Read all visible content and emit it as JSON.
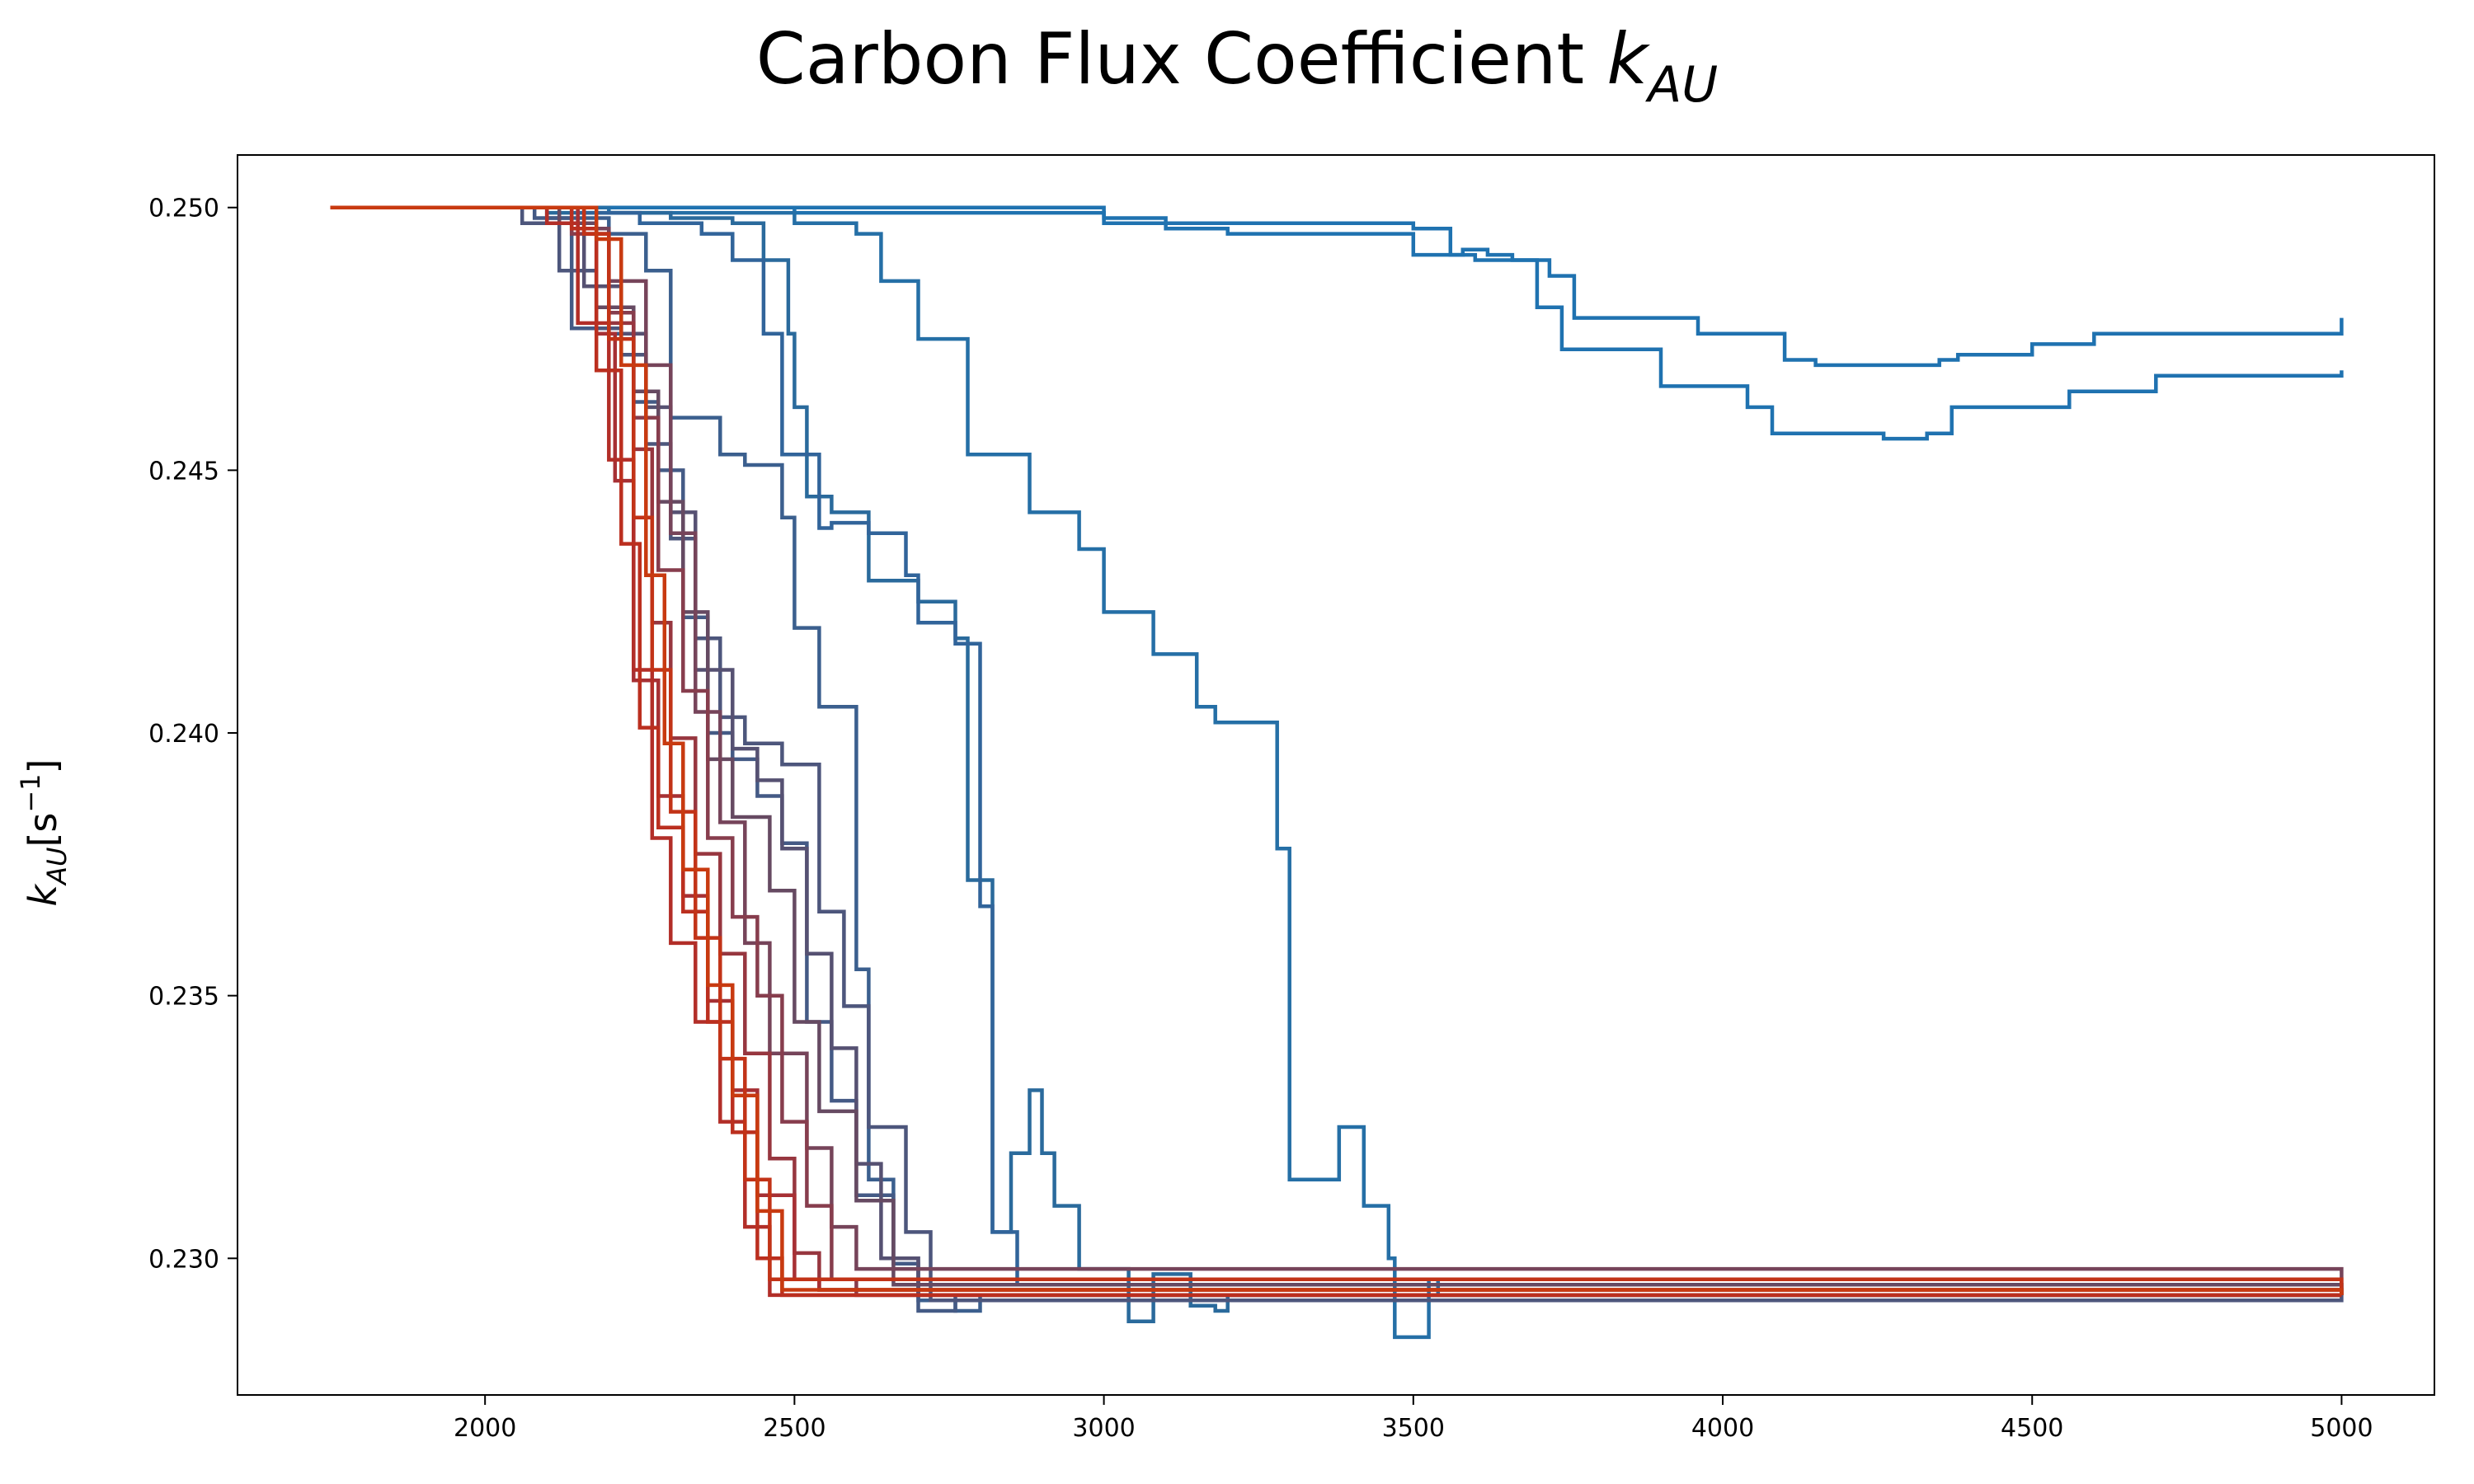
{
  "chart_data": {
    "type": "line",
    "title": {
      "text": "Carbon Flux Coefficient ",
      "symbol": "k",
      "subscript": "AU"
    },
    "xlabel": "",
    "ylabel": {
      "symbol": "k",
      "subscript": "AU",
      "unit_text": "[s",
      "unit_sup": "−1",
      "unit_close": "]"
    },
    "xlim": [
      1600,
      5150
    ],
    "ylim": [
      0.2274,
      0.251
    ],
    "xticks": [
      2000,
      2500,
      3000,
      3500,
      4000,
      4500,
      5000
    ],
    "yticks": [
      0.23,
      0.235,
      0.24,
      0.245,
      0.25
    ],
    "ytick_labels": [
      "0.230",
      "0.235",
      "0.240",
      "0.245",
      "0.250"
    ],
    "grid": false,
    "legend": "none",
    "series": [
      {
        "color": "#1f72b0",
        "x": [
          1750,
          2500,
          3000,
          3500,
          3560,
          3600,
          3720,
          3760,
          3800,
          3960,
          4000,
          4100,
          4150,
          4250,
          4350,
          4380,
          4500,
          4600,
          5000
        ],
        "y": [
          0.25,
          0.2499,
          0.2497,
          0.2496,
          0.2491,
          0.249,
          0.2487,
          0.2479,
          0.2479,
          0.2476,
          0.2476,
          0.2471,
          0.247,
          0.247,
          0.2471,
          0.2472,
          0.2474,
          0.2476,
          0.2479
        ]
      },
      {
        "color": "#1f72b0",
        "x": [
          1750,
          3000,
          3100,
          3200,
          3500,
          3580,
          3620,
          3660,
          3700,
          3740,
          3880,
          3900,
          4020,
          4040,
          4080,
          4260,
          4330,
          4370,
          4500,
          4560,
          4700,
          5000
        ],
        "y": [
          0.25,
          0.2498,
          0.2496,
          0.2495,
          0.2491,
          0.2492,
          0.2491,
          0.249,
          0.2481,
          0.2473,
          0.2473,
          0.2466,
          0.2466,
          0.2462,
          0.2457,
          0.2456,
          0.2457,
          0.2462,
          0.2462,
          0.2465,
          0.2468,
          0.2469
        ]
      },
      {
        "color": "#256fa6",
        "x": [
          1750,
          2200,
          2500,
          2600,
          2640,
          2700,
          2780,
          2880,
          2960,
          3000,
          3080,
          3150,
          3180,
          3280,
          3300,
          3300,
          3380,
          3420,
          3460,
          3470,
          3520,
          3525,
          3540,
          3600,
          5000
        ],
        "y": [
          0.25,
          0.2499,
          0.2497,
          0.2495,
          0.2486,
          0.2475,
          0.2453,
          0.2442,
          0.2435,
          0.2423,
          0.2415,
          0.2405,
          0.2402,
          0.2378,
          0.2377,
          0.2315,
          0.2325,
          0.231,
          0.23,
          0.2285,
          0.2285,
          0.2296,
          0.2293,
          0.2293,
          0.2293
        ]
      },
      {
        "color": "#2a6a9c",
        "x": [
          1750,
          2100,
          2300,
          2400,
          2450,
          2490,
          2500,
          2520,
          2560,
          2620,
          2700,
          2760,
          2780,
          2820,
          2840,
          2850,
          2880,
          2900,
          2920,
          2960,
          3040,
          3080,
          3140,
          3180,
          3200,
          3250,
          3300,
          5000
        ],
        "y": [
          0.25,
          0.2499,
          0.2498,
          0.2497,
          0.249,
          0.2476,
          0.2462,
          0.2445,
          0.2442,
          0.2429,
          0.2425,
          0.2418,
          0.2372,
          0.2305,
          0.2305,
          0.232,
          0.2332,
          0.232,
          0.231,
          0.2298,
          0.2288,
          0.2297,
          0.2291,
          0.229,
          0.2293,
          0.2293,
          0.2293,
          0.2293
        ]
      },
      {
        "color": "#31649a",
        "x": [
          1750,
          2150,
          2250,
          2350,
          2400,
          2450,
          2480,
          2540,
          2560,
          2620,
          2680,
          2700,
          2760,
          2800,
          2820,
          2860,
          5000
        ],
        "y": [
          0.25,
          0.2499,
          0.2497,
          0.2495,
          0.249,
          0.2476,
          0.2453,
          0.2439,
          0.244,
          0.2438,
          0.243,
          0.2421,
          0.2417,
          0.2367,
          0.2305,
          0.2295,
          0.2293
        ]
      },
      {
        "color": "#3b5f8e",
        "x": [
          1750,
          2100,
          2200,
          2260,
          2300,
          2380,
          2420,
          2480,
          2500,
          2540,
          2600,
          2620,
          2660,
          2700,
          2760,
          2800,
          5000
        ],
        "y": [
          0.25,
          0.2498,
          0.2495,
          0.2488,
          0.246,
          0.2453,
          0.2451,
          0.2441,
          0.242,
          0.2405,
          0.2355,
          0.2315,
          0.23,
          0.2292,
          0.229,
          0.2293,
          0.2293
        ]
      },
      {
        "color": "#445a85",
        "x": [
          1750,
          2080,
          2140,
          2200,
          2240,
          2280,
          2320,
          2360,
          2400,
          2440,
          2480,
          2520,
          2560,
          2600,
          2660,
          2700,
          2760,
          5000
        ],
        "y": [
          0.25,
          0.2498,
          0.2477,
          0.2476,
          0.2463,
          0.245,
          0.2422,
          0.24,
          0.2395,
          0.2388,
          0.2379,
          0.2345,
          0.233,
          0.2312,
          0.2299,
          0.229,
          0.2293,
          0.2293
        ]
      },
      {
        "color": "#4d567c",
        "x": [
          1750,
          2060,
          2120,
          2180,
          2220,
          2260,
          2300,
          2340,
          2380,
          2420,
          2480,
          2540,
          2580,
          2620,
          2680,
          2720,
          5000
        ],
        "y": [
          0.25,
          0.2497,
          0.2488,
          0.2477,
          0.2472,
          0.2455,
          0.2437,
          0.2418,
          0.2403,
          0.2398,
          0.2394,
          0.2366,
          0.2348,
          0.2325,
          0.2305,
          0.2292,
          0.2293
        ]
      },
      {
        "color": "#565172",
        "x": [
          1750,
          2100,
          2160,
          2220,
          2260,
          2300,
          2340,
          2400,
          2440,
          2480,
          2520,
          2560,
          2600,
          2640,
          2700,
          5000
        ],
        "y": [
          0.25,
          0.2497,
          0.2485,
          0.2476,
          0.2462,
          0.2442,
          0.2412,
          0.2397,
          0.2391,
          0.2378,
          0.2358,
          0.234,
          0.2318,
          0.23,
          0.2293,
          0.2293
        ]
      },
      {
        "color": "#664a62",
        "x": [
          1750,
          2120,
          2180,
          2240,
          2280,
          2320,
          2360,
          2400,
          2460,
          2500,
          2540,
          2600,
          2660,
          5000
        ],
        "y": [
          0.25,
          0.2497,
          0.2481,
          0.2465,
          0.2444,
          0.2423,
          0.2395,
          0.2384,
          0.237,
          0.2345,
          0.2328,
          0.2311,
          0.2295,
          0.2293
        ]
      },
      {
        "color": "#76445a",
        "x": [
          1750,
          2150,
          2200,
          2260,
          2300,
          2340,
          2380,
          2420,
          2460,
          2520,
          2560,
          2600,
          5000
        ],
        "y": [
          0.25,
          0.2496,
          0.2486,
          0.247,
          0.2438,
          0.2404,
          0.2383,
          0.236,
          0.2339,
          0.2321,
          0.2306,
          0.2298,
          0.2293
        ]
      },
      {
        "color": "#873d4d",
        "x": [
          1750,
          2140,
          2200,
          2240,
          2280,
          2320,
          2360,
          2400,
          2440,
          2480,
          2520,
          2560,
          2600,
          5000
        ],
        "y": [
          0.25,
          0.2495,
          0.248,
          0.246,
          0.2431,
          0.2408,
          0.238,
          0.2365,
          0.235,
          0.2326,
          0.231,
          0.2296,
          0.2293,
          0.2293
        ]
      },
      {
        "color": "#97363f",
        "x": [
          1750,
          2160,
          2200,
          2240,
          2270,
          2300,
          2340,
          2380,
          2420,
          2460,
          2500,
          2540,
          5000
        ],
        "y": [
          0.25,
          0.2495,
          0.2478,
          0.2454,
          0.2421,
          0.2399,
          0.2377,
          0.2358,
          0.2339,
          0.2319,
          0.2301,
          0.2294,
          0.2293
        ]
      },
      {
        "color": "#a73034",
        "x": [
          1750,
          2150,
          2180,
          2210,
          2240,
          2280,
          2320,
          2360,
          2400,
          2440,
          2500,
          2540,
          5000
        ],
        "y": [
          0.25,
          0.2496,
          0.2476,
          0.2448,
          0.241,
          0.2388,
          0.2369,
          0.2349,
          0.2332,
          0.2312,
          0.2296,
          0.2294,
          0.2293
        ]
      },
      {
        "color": "#b22e28",
        "x": [
          1750,
          2100,
          2150,
          2200,
          2240,
          2270,
          2300,
          2340,
          2380,
          2420,
          2460,
          2500,
          5000
        ],
        "y": [
          0.25,
          0.2497,
          0.2478,
          0.2452,
          0.2412,
          0.238,
          0.236,
          0.2345,
          0.2326,
          0.2306,
          0.2293,
          0.2293,
          0.2293
        ]
      },
      {
        "color": "#bb2f1f",
        "x": [
          1750,
          2140,
          2180,
          2220,
          2250,
          2280,
          2320,
          2360,
          2400,
          2440,
          2480,
          5000
        ],
        "y": [
          0.25,
          0.2496,
          0.2469,
          0.2436,
          0.2401,
          0.2382,
          0.2366,
          0.2345,
          0.2324,
          0.23,
          0.2293,
          0.2293
        ]
      },
      {
        "color": "#c23317",
        "x": [
          1750,
          2160,
          2200,
          2240,
          2270,
          2300,
          2340,
          2380,
          2420,
          2460,
          5000
        ],
        "y": [
          0.25,
          0.2495,
          0.2475,
          0.2441,
          0.2412,
          0.2385,
          0.2361,
          0.2338,
          0.2315,
          0.2296,
          0.2293
        ]
      },
      {
        "color": "#c83a10",
        "x": [
          1750,
          2180,
          2220,
          2260,
          2290,
          2320,
          2360,
          2400,
          2440,
          2480,
          5000
        ],
        "y": [
          0.25,
          0.2494,
          0.247,
          0.243,
          0.2398,
          0.2374,
          0.2352,
          0.2331,
          0.2309,
          0.2294,
          0.2293
        ]
      }
    ]
  }
}
